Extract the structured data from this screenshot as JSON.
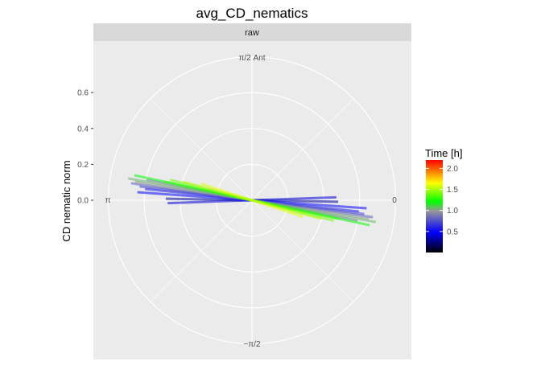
{
  "chart_data": {
    "type": "polar-segments",
    "title": "avg_CD_nematics",
    "facet_label": "raw",
    "ylabel": "CD nematic norm",
    "y_ticks": [
      "0.0",
      "0.2",
      "0.4",
      "0.6"
    ],
    "y_tick_values": [
      0,
      0.2,
      0.4,
      0.6
    ],
    "rmax": 0.8,
    "angle_labels": {
      "top": "π/2 Ant",
      "left": "π",
      "right": "0",
      "bottom": "−π/2"
    },
    "legend": {
      "title": "Time [h]",
      "ticks": [
        "0.5",
        "1.0",
        "1.5",
        "2.0"
      ],
      "tick_values": [
        0.5,
        1.0,
        1.5,
        2.0
      ],
      "min": 0.0,
      "max": 2.2
    },
    "series": [
      {
        "time": 0.3,
        "magnitude": 0.48,
        "angle_deg": 179
      },
      {
        "time": 0.4,
        "magnitude": 0.47,
        "angle_deg": 2
      },
      {
        "time": 0.5,
        "magnitude": 0.64,
        "angle_deg": 176
      },
      {
        "time": 0.6,
        "magnitude": 0.6,
        "angle_deg": 174
      },
      {
        "time": 0.7,
        "magnitude": 0.63,
        "angle_deg": 173
      },
      {
        "time": 0.8,
        "magnitude": 0.68,
        "angle_deg": 172
      },
      {
        "time": 0.9,
        "magnitude": 0.6,
        "angle_deg": 169
      },
      {
        "time": 1.0,
        "magnitude": 0.66,
        "angle_deg": 171
      },
      {
        "time": 1.05,
        "magnitude": 0.7,
        "angle_deg": 170
      },
      {
        "time": 1.2,
        "magnitude": 0.67,
        "angle_deg": 168
      },
      {
        "time": 1.3,
        "magnitude": 0.5,
        "angle_deg": 168
      },
      {
        "time": 1.4,
        "magnitude": 0.47,
        "angle_deg": 166
      },
      {
        "time": 1.5,
        "magnitude": 0.4,
        "angle_deg": 165
      },
      {
        "time": 1.6,
        "magnitude": 0.3,
        "angle_deg": 162
      }
    ]
  }
}
